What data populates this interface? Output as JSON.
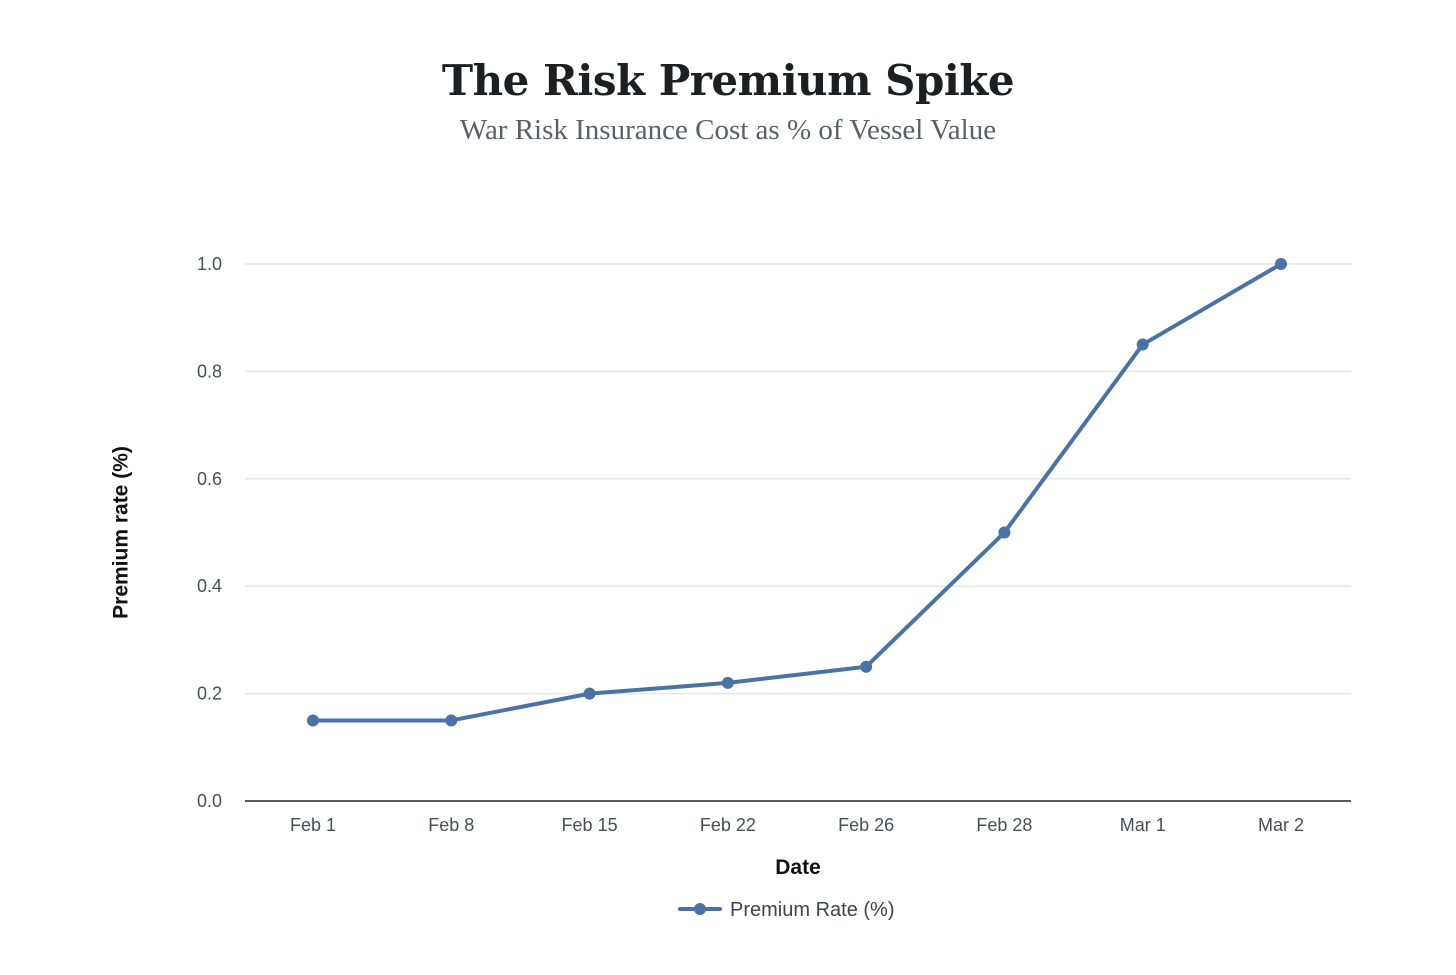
{
  "chart_data": {
    "type": "line",
    "title": "The Risk Premium Spike",
    "subtitle": "War Risk Insurance Cost as % of Vessel Value",
    "xlabel": "Date",
    "ylabel": "Premium rate (%)",
    "categories": [
      "Feb 1",
      "Feb 8",
      "Feb 15",
      "Feb 22",
      "Feb 26",
      "Feb 28",
      "Mar 1",
      "Mar 2"
    ],
    "series": [
      {
        "name": "Premium Rate (%)",
        "values": [
          0.15,
          0.15,
          0.2,
          0.22,
          0.25,
          0.5,
          0.85,
          1.0
        ],
        "color": "#4a72a4"
      }
    ],
    "ylim": [
      0,
      1.0
    ],
    "yticks": [
      "0.0",
      "0.2",
      "0.4",
      "0.6",
      "0.8",
      "1.0"
    ],
    "ytick_values": [
      0,
      0.2,
      0.4,
      0.6,
      0.8,
      1.0
    ],
    "grid": true,
    "legend_position": "bottom-center",
    "gridline_color": "#e4e6e9",
    "axis_color": "#222222"
  }
}
